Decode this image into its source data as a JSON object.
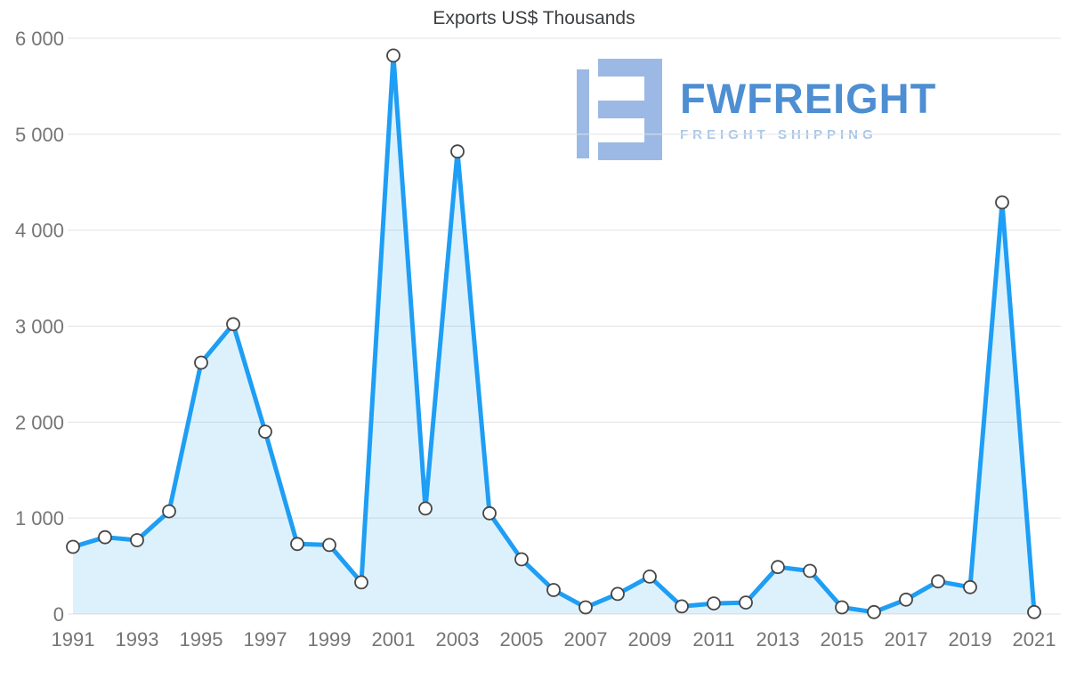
{
  "page": {
    "title": "Exports US$ Thousands"
  },
  "logo": {
    "brand": "FWFREIGHT",
    "tagline": "FREIGHT SHIPPING"
  },
  "chart_data": {
    "type": "area",
    "title": "Exports US$ Thousands",
    "xlabel": "",
    "ylabel": "",
    "legend": "none",
    "grid": "horizontal",
    "ylim": [
      0,
      6000
    ],
    "x": [
      1991,
      1992,
      1993,
      1994,
      1995,
      1996,
      1997,
      1998,
      1999,
      2000,
      2001,
      2002,
      2003,
      2004,
      2005,
      2006,
      2007,
      2008,
      2009,
      2010,
      2011,
      2012,
      2013,
      2014,
      2015,
      2016,
      2017,
      2018,
      2019,
      2020,
      2021
    ],
    "values": [
      700,
      800,
      770,
      1070,
      2620,
      3020,
      1900,
      730,
      720,
      330,
      5820,
      1100,
      4820,
      1050,
      570,
      250,
      70,
      210,
      390,
      80,
      110,
      120,
      490,
      450,
      70,
      20,
      150,
      340,
      280,
      4290,
      20
    ],
    "x_tick_labels": [
      "1991",
      "1993",
      "1995",
      "1997",
      "1999",
      "2001",
      "2003",
      "2005",
      "2007",
      "2009",
      "2011",
      "2013",
      "2015",
      "2017",
      "2019",
      "2021"
    ],
    "y_ticks": [
      0,
      1000,
      2000,
      3000,
      4000,
      5000,
      6000
    ],
    "y_tick_labels": [
      "0",
      "1 000",
      "2 000",
      "3 000",
      "4 000",
      "5 000",
      "6 000"
    ],
    "colors": {
      "line": "#1e9ef4",
      "fill": "#1e9ef4",
      "fill_opacity": "0.15",
      "marker_fill": "#ffffff",
      "marker_stroke": "#464646",
      "grid": "#e3e3e3",
      "axis_text": "#757575",
      "title_text": "#3d4043",
      "logo_text": "#4e8ed2",
      "logo_tagline": "#a9c7ea",
      "logo_icon": "#9bb9e4"
    }
  }
}
